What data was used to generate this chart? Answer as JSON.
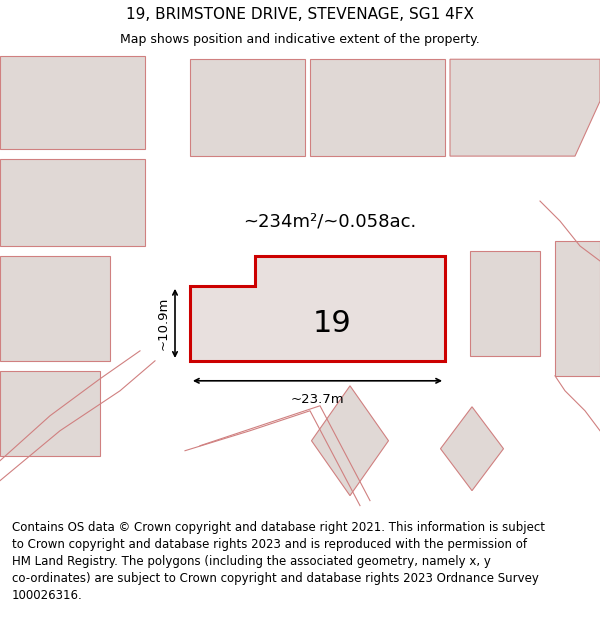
{
  "title": "19, BRIMSTONE DRIVE, STEVENAGE, SG1 4FX",
  "subtitle": "Map shows position and indicative extent of the property.",
  "footer": "Contains OS data © Crown copyright and database right 2021. This information is subject\nto Crown copyright and database rights 2023 and is reproduced with the permission of\nHM Land Registry. The polygons (including the associated geometry, namely x, y\nco-ordinates) are subject to Crown copyright and database rights 2023 Ordnance Survey\n100026316.",
  "area_label": "~234m²/~0.058ac.",
  "width_label": "~23.7m",
  "height_label": "~10.9m",
  "property_number": "19",
  "map_bg": "#f0ece8",
  "property_fill": "#e8e0de",
  "property_edge": "#cc0000",
  "neighbor_fill": "#e0d8d5",
  "neighbor_edge": "#d08080",
  "title_fontsize": 11,
  "subtitle_fontsize": 9,
  "footer_fontsize": 8.5
}
